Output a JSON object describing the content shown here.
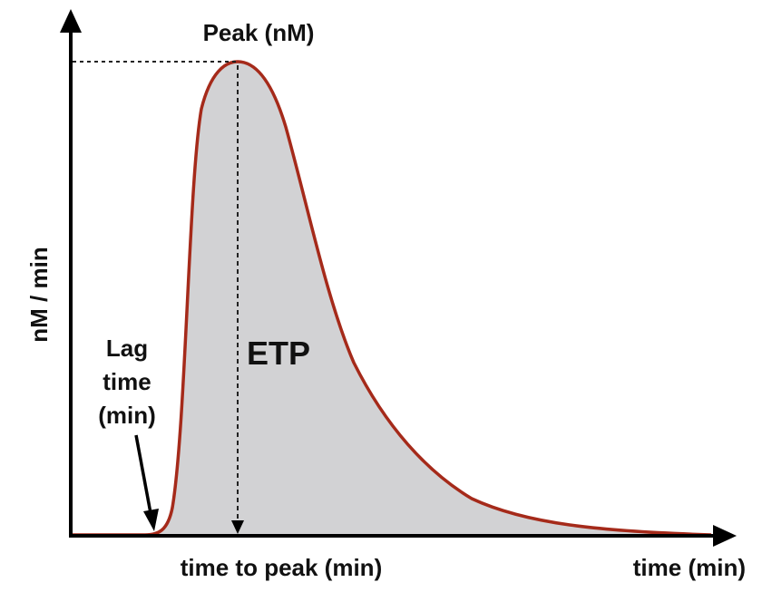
{
  "labels": {
    "peak": "Peak (nM)",
    "y_axis": "nM / min",
    "area": "ETP",
    "lag_line1": "Lag",
    "lag_line2": "time",
    "lag_line3": "(min)",
    "time_to_peak": "time to peak (min)",
    "x_axis": "time (min)"
  },
  "colors": {
    "curve": "#a52a1a",
    "area_fill": "#d2d2d4",
    "axis": "#000000",
    "guide": "#222222"
  }
}
